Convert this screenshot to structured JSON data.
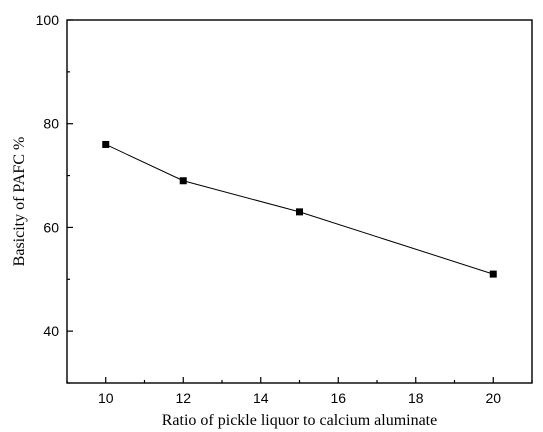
{
  "chart_data": {
    "type": "line",
    "title": "",
    "xlabel": "Ratio of pickle liquor to calcium aluminate",
    "ylabel": "Basicity of PAFC  %",
    "xlim": [
      9,
      21
    ],
    "ylim": [
      30,
      100
    ],
    "x_ticks": [
      10,
      12,
      14,
      16,
      18,
      20
    ],
    "x_tick_labels": [
      "10",
      "12",
      "14",
      "16",
      "18",
      "20"
    ],
    "y_ticks": [
      40,
      60,
      80,
      100
    ],
    "y_tick_labels": [
      "40",
      "60",
      "80",
      "100"
    ],
    "grid": false,
    "legend": "none",
    "marker": "square",
    "series": [
      {
        "x": [
          10,
          12,
          15,
          20
        ],
        "y": [
          76,
          69,
          63,
          51
        ]
      }
    ]
  }
}
